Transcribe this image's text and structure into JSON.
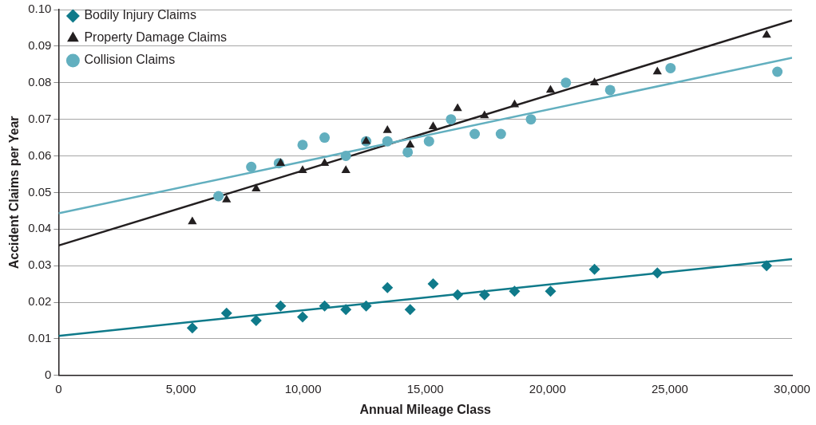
{
  "chart_data": {
    "type": "scatter",
    "xlabel": "Annual Mileage Class",
    "ylabel": "Accident Claims per Year",
    "xlim": [
      0,
      30000
    ],
    "ylim": [
      0,
      0.1
    ],
    "xticks": [
      0,
      {
        "value": 5000,
        "label": "5,000"
      },
      {
        "value": 10000,
        "label": "10,000"
      },
      {
        "value": 15000,
        "label": "15,000"
      },
      {
        "value": 20000,
        "label": "20,000"
      },
      {
        "value": 25000,
        "label": "25,000"
      },
      {
        "value": 30000,
        "label": "30,000"
      }
    ],
    "yticks": [
      0,
      {
        "value": 0.01,
        "label": "0.01"
      },
      {
        "value": 0.02,
        "label": "0.02"
      },
      {
        "value": 0.03,
        "label": "0.03"
      },
      {
        "value": 0.04,
        "label": "0.04"
      },
      {
        "value": 0.05,
        "label": "0.05"
      },
      {
        "value": 0.06,
        "label": "0.06"
      },
      {
        "value": 0.07,
        "label": "0.07"
      },
      {
        "value": 0.08,
        "label": "0.08"
      },
      {
        "value": 0.09,
        "label": "0.09"
      },
      {
        "value": 0.1,
        "label": "0.10"
      }
    ],
    "grid": "y",
    "legend": "top left",
    "series": [
      {
        "name": "Collision Claims",
        "color": "#62afbf",
        "marker": "circle",
        "x": [
          6540,
          7880,
          9010,
          9980,
          10880,
          11750,
          12580,
          13450,
          14280,
          15150,
          16050,
          17020,
          18090,
          19320,
          20750,
          22560,
          25030,
          29400
        ],
        "values": [
          0.049,
          0.057,
          0.058,
          0.063,
          0.065,
          0.06,
          0.064,
          0.064,
          0.061,
          0.064,
          0.07,
          0.066,
          0.066,
          0.07,
          0.08,
          0.078,
          0.084,
          0.083
        ]
      },
      {
        "name": "Property Damage Claims",
        "color": "#231f20",
        "marker": "triangle",
        "x": [
          5470,
          6870,
          8080,
          9080,
          9980,
          10880,
          11750,
          12580,
          13450,
          14380,
          15320,
          16320,
          17420,
          18650,
          20120,
          21920,
          24490,
          28960
        ],
        "values": [
          0.042,
          0.048,
          0.051,
          0.058,
          0.056,
          0.058,
          0.056,
          0.064,
          0.067,
          0.063,
          0.068,
          0.073,
          0.071,
          0.074,
          0.078,
          0.08,
          0.083,
          0.093
        ]
      },
      {
        "name": "Bodily Injury Claims",
        "color": "#0f7a8a",
        "marker": "diamond",
        "x": [
          5470,
          6870,
          8080,
          9080,
          9980,
          10880,
          11750,
          12580,
          13450,
          14380,
          15320,
          16320,
          17420,
          18650,
          20120,
          21920,
          24490,
          28960
        ],
        "values": [
          0.013,
          0.017,
          0.015,
          0.019,
          0.016,
          0.019,
          0.018,
          0.019,
          0.024,
          0.018,
          0.025,
          0.022,
          0.022,
          0.023,
          0.023,
          0.029,
          0.028,
          0.03
        ]
      },
      {
        "type": "line",
        "color": "#62afbf",
        "marker": "none",
        "x": [
          0,
          30000
        ],
        "values": [
          0.0443,
          0.0868
        ]
      },
      {
        "type": "line",
        "color": "#231f20",
        "marker": "none",
        "x": [
          0,
          30000
        ],
        "values": [
          0.0355,
          0.097
        ]
      },
      {
        "type": "line",
        "color": "#0f7a8a",
        "marker": "none",
        "x": [
          0,
          30000
        ],
        "values": [
          0.0108,
          0.0318
        ]
      }
    ]
  }
}
